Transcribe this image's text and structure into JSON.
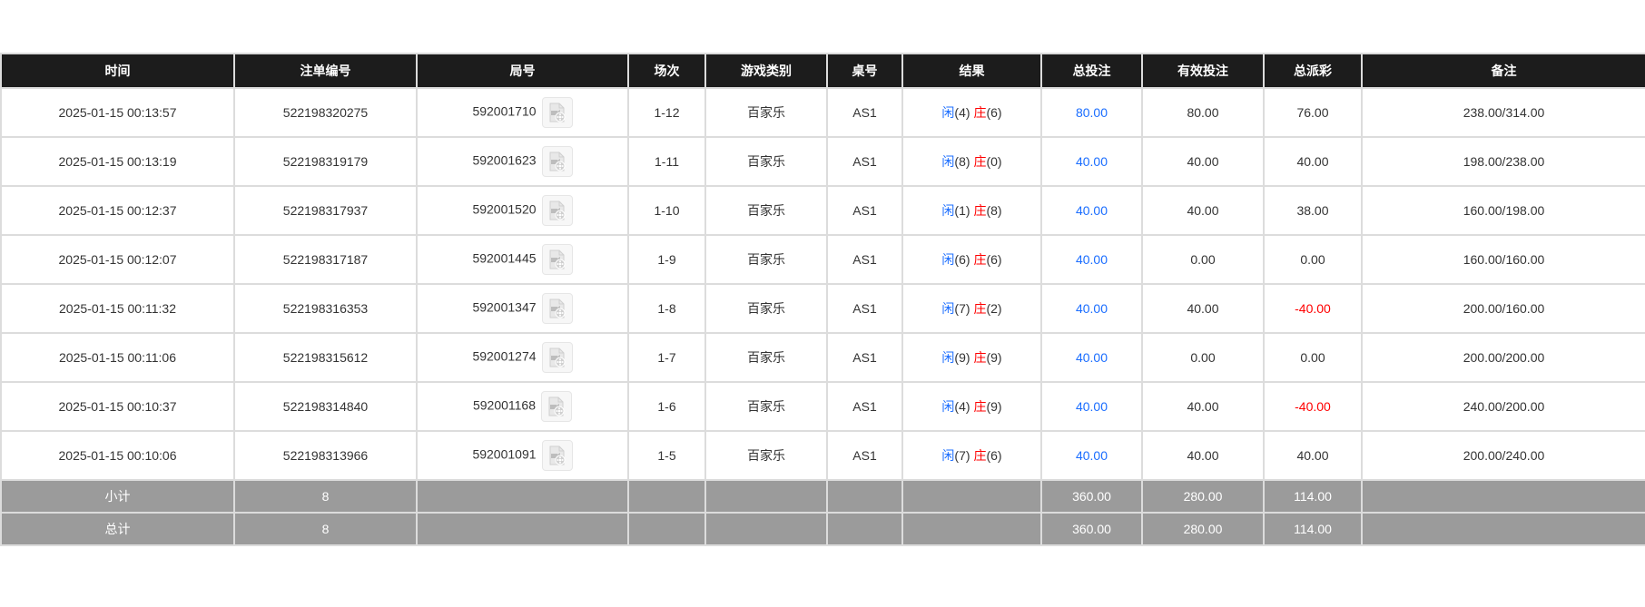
{
  "headers": [
    "时间",
    "注单编号",
    "局号",
    "场次",
    "游戏类别",
    "桌号",
    "结果",
    "总投注",
    "有效投注",
    "总派彩",
    "备注"
  ],
  "rows": [
    {
      "time": "2025-01-15 00:13:57",
      "bet_id": "522198320275",
      "round": "592001710",
      "session": "1-12",
      "game": "百家乐",
      "table": "AS1",
      "player_label": "闲",
      "player": "(4)",
      "banker_label": "庄",
      "banker": "(6)",
      "total_bet": "80.00",
      "valid_bet": "80.00",
      "payout": "76.00",
      "payout_negative": false,
      "note": "238.00/314.00"
    },
    {
      "time": "2025-01-15 00:13:19",
      "bet_id": "522198319179",
      "round": "592001623",
      "session": "1-11",
      "game": "百家乐",
      "table": "AS1",
      "player_label": "闲",
      "player": "(8)",
      "banker_label": "庄",
      "banker": "(0)",
      "total_bet": "40.00",
      "valid_bet": "40.00",
      "payout": "40.00",
      "payout_negative": false,
      "note": "198.00/238.00"
    },
    {
      "time": "2025-01-15 00:12:37",
      "bet_id": "522198317937",
      "round": "592001520",
      "session": "1-10",
      "game": "百家乐",
      "table": "AS1",
      "player_label": "闲",
      "player": "(1)",
      "banker_label": "庄",
      "banker": "(8)",
      "total_bet": "40.00",
      "valid_bet": "40.00",
      "payout": "38.00",
      "payout_negative": false,
      "note": "160.00/198.00"
    },
    {
      "time": "2025-01-15 00:12:07",
      "bet_id": "522198317187",
      "round": "592001445",
      "session": "1-9",
      "game": "百家乐",
      "table": "AS1",
      "player_label": "闲",
      "player": "(6)",
      "banker_label": "庄",
      "banker": "(6)",
      "total_bet": "40.00",
      "valid_bet": "0.00",
      "payout": "0.00",
      "payout_negative": false,
      "note": "160.00/160.00"
    },
    {
      "time": "2025-01-15 00:11:32",
      "bet_id": "522198316353",
      "round": "592001347",
      "session": "1-8",
      "game": "百家乐",
      "table": "AS1",
      "player_label": "闲",
      "player": "(7)",
      "banker_label": "庄",
      "banker": "(2)",
      "total_bet": "40.00",
      "valid_bet": "40.00",
      "payout": "-40.00",
      "payout_negative": true,
      "note": "200.00/160.00"
    },
    {
      "time": "2025-01-15 00:11:06",
      "bet_id": "522198315612",
      "round": "592001274",
      "session": "1-7",
      "game": "百家乐",
      "table": "AS1",
      "player_label": "闲",
      "player": "(9)",
      "banker_label": "庄",
      "banker": "(9)",
      "total_bet": "40.00",
      "valid_bet": "0.00",
      "payout": "0.00",
      "payout_negative": false,
      "note": "200.00/200.00"
    },
    {
      "time": "2025-01-15 00:10:37",
      "bet_id": "522198314840",
      "round": "592001168",
      "session": "1-6",
      "game": "百家乐",
      "table": "AS1",
      "player_label": "闲",
      "player": "(4)",
      "banker_label": "庄",
      "banker": "(9)",
      "total_bet": "40.00",
      "valid_bet": "40.00",
      "payout": "-40.00",
      "payout_negative": true,
      "note": "240.00/200.00"
    },
    {
      "time": "2025-01-15 00:10:06",
      "bet_id": "522198313966",
      "round": "592001091",
      "session": "1-5",
      "game": "百家乐",
      "table": "AS1",
      "player_label": "闲",
      "player": "(7)",
      "banker_label": "庄",
      "banker": "(6)",
      "total_bet": "40.00",
      "valid_bet": "40.00",
      "payout": "40.00",
      "payout_negative": false,
      "note": "200.00/240.00"
    }
  ],
  "subtotal": {
    "label": "小计",
    "count": "8",
    "total_bet": "360.00",
    "valid_bet": "280.00",
    "payout": "114.00"
  },
  "total": {
    "label": "总计",
    "count": "8",
    "total_bet": "360.00",
    "valid_bet": "280.00",
    "payout": "114.00"
  },
  "icons": {
    "replay": "video-file-icon"
  },
  "colors": {
    "header_bg": "#1c1c1c",
    "player": "#1a6dff",
    "banker": "#ff0000",
    "negative": "#ff0000",
    "summary_bg": "#9b9b9b"
  }
}
